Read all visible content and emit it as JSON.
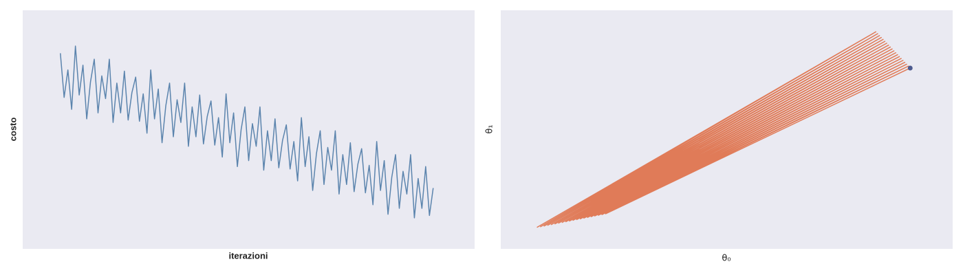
{
  "chart_data": [
    {
      "type": "line",
      "xlabel": "iterazioni",
      "ylabel": "costo",
      "color": "#5b84ad",
      "x": [
        0,
        1,
        2,
        3,
        4,
        5,
        6,
        7,
        8,
        9,
        10,
        11,
        12,
        13,
        14,
        15,
        16,
        17,
        18,
        19,
        20,
        21,
        22,
        23,
        24,
        25,
        26,
        27,
        28,
        29,
        30,
        31,
        32,
        33,
        34,
        35,
        36,
        37,
        38,
        39,
        40,
        41,
        42,
        43,
        44,
        45,
        46,
        47,
        48,
        49,
        50,
        51,
        52,
        53,
        54,
        55,
        56,
        57,
        58,
        59,
        60,
        61,
        62,
        63,
        64,
        65,
        66,
        67,
        68,
        69,
        70,
        71,
        72,
        73,
        74,
        75,
        76,
        77,
        78,
        79,
        80,
        81,
        82,
        83,
        84,
        85,
        86,
        87,
        88,
        89,
        90,
        91,
        92,
        93,
        94,
        95,
        96,
        97,
        98,
        99
      ],
      "series": [
        {
          "values": [
            82,
            63.5,
            75,
            58.5,
            85,
            64.5,
            77,
            54.5,
            70,
            79.5,
            57,
            72.5,
            63,
            79.5,
            53,
            69.5,
            57,
            74.5,
            54,
            65.5,
            72,
            53.5,
            65,
            48.5,
            75,
            54.5,
            67,
            44.5,
            60,
            69.5,
            47,
            62.5,
            53,
            69.5,
            43,
            59.5,
            47,
            64.5,
            44,
            55.5,
            62,
            43.5,
            55,
            38.5,
            65,
            44.5,
            57,
            34.5,
            50,
            59.5,
            37,
            52.5,
            43,
            59.5,
            33,
            49.5,
            37,
            54.5,
            34,
            45.5,
            52,
            33.5,
            45,
            28.5,
            55,
            34.5,
            47,
            24.5,
            40,
            49.5,
            27,
            42.5,
            33,
            49.5,
            23,
            39.5,
            27,
            44.5,
            24,
            35.5,
            42,
            23.5,
            35,
            18.5,
            45,
            24.5,
            37,
            14.5,
            30,
            39.5,
            17,
            32.5,
            23,
            39.5,
            13,
            29.5,
            17,
            34.5,
            14,
            25.5
          ]
        }
      ],
      "xlim": [
        -10,
        110
      ],
      "ylim": [
        0,
        100
      ]
    },
    {
      "type": "trajectory",
      "xlabel": "θ₀",
      "ylabel": "θ₁",
      "color": "#e07b58",
      "marker_color": "#4c5a8e",
      "x": [
        8,
        83,
        8.8,
        83.4,
        9.6,
        83.8,
        10.4,
        84.2,
        11.2,
        84.6,
        12,
        85,
        12.8,
        85.4,
        13.6,
        85.8,
        14.4,
        86.2,
        15.2,
        86.6,
        16,
        87,
        16.8,
        87.4,
        17.6,
        87.8,
        18.4,
        88.2,
        19.2,
        88.6,
        20,
        89,
        20.8,
        89.4,
        21.6,
        89.8,
        22.4,
        90.2,
        23.2,
        90.6
      ],
      "series": [
        {
          "values": [
            9,
            91,
            9.3,
            90.2,
            9.6,
            89.4,
            9.9,
            88.6,
            10.2,
            87.8,
            10.5,
            87,
            10.8,
            86.2,
            11.1,
            85.4,
            11.4,
            84.6,
            11.7,
            83.8,
            12,
            83,
            12.3,
            82.2,
            12.6,
            81.4,
            12.9,
            80.6,
            13.2,
            79.8,
            13.5,
            79,
            13.8,
            78.2,
            14.1,
            77.4,
            14.4,
            76.6,
            14.7,
            75.8
          ]
        }
      ],
      "xlim": [
        0,
        100
      ],
      "ylim": [
        0,
        100
      ]
    }
  ]
}
